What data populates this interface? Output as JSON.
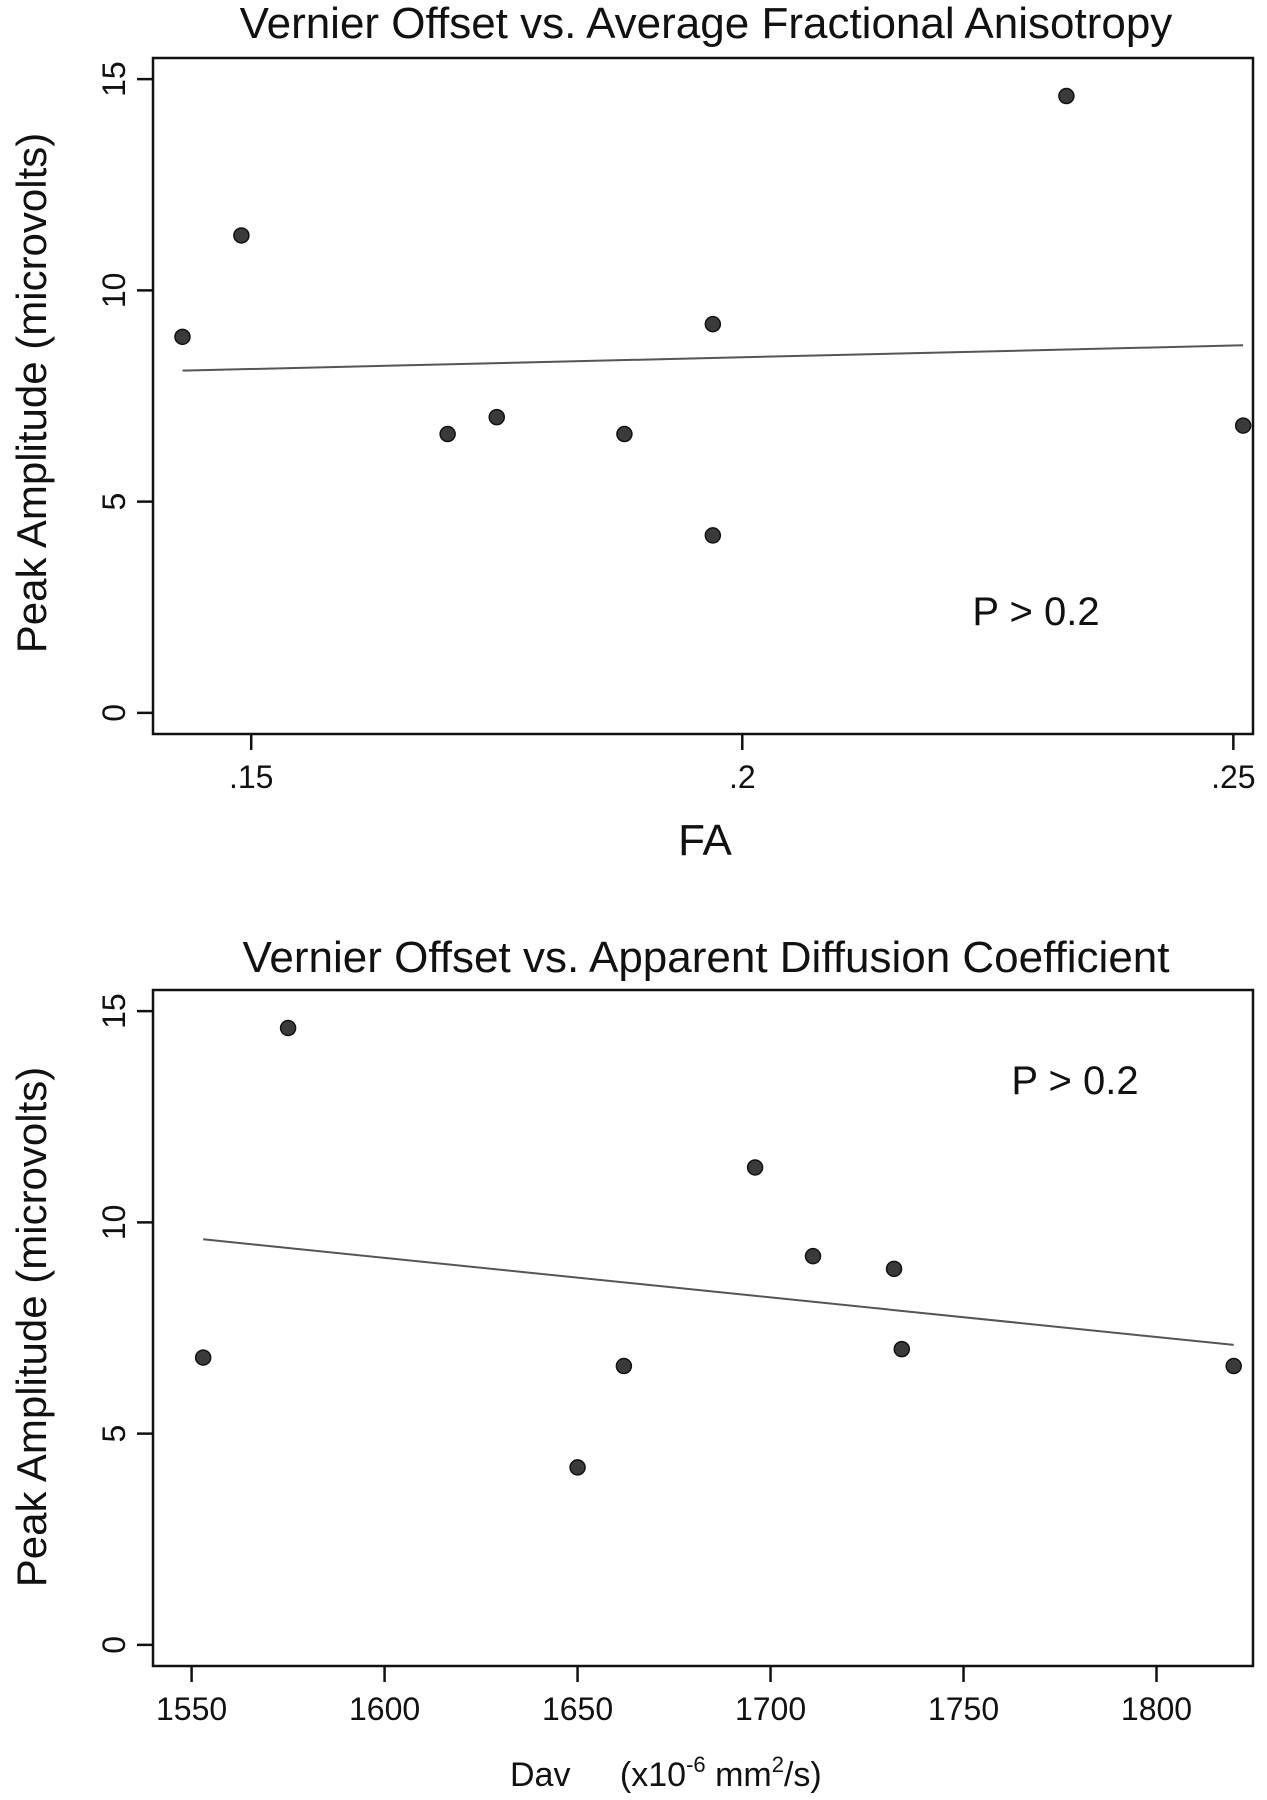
{
  "chart_data": [
    {
      "type": "scatter",
      "title": "Vernier Offset vs. Average Fractional Anisotropy",
      "xlabel": "FA",
      "ylabel": "Peak Amplitude (microvolts)",
      "xlim": [
        0.14,
        0.252
      ],
      "ylim": [
        -0.5,
        15.5
      ],
      "xticks": [
        0.15,
        0.2,
        0.25
      ],
      "xtick_labels": [
        ".15",
        ".2",
        ".25"
      ],
      "yticks": [
        0,
        5,
        10,
        15
      ],
      "ytick_labels": [
        "0",
        "5",
        "10",
        "15"
      ],
      "points": [
        {
          "x": 0.143,
          "y": 8.9
        },
        {
          "x": 0.149,
          "y": 11.3
        },
        {
          "x": 0.17,
          "y": 6.6
        },
        {
          "x": 0.175,
          "y": 7.0
        },
        {
          "x": 0.188,
          "y": 6.6
        },
        {
          "x": 0.197,
          "y": 9.2
        },
        {
          "x": 0.197,
          "y": 4.2
        },
        {
          "x": 0.233,
          "y": 14.6
        },
        {
          "x": 0.251,
          "y": 6.8
        }
      ],
      "fit_line": [
        {
          "x": 0.143,
          "y": 8.1
        },
        {
          "x": 0.251,
          "y": 8.7
        }
      ],
      "annotation": "P > 0.2",
      "grid": false
    },
    {
      "type": "scatter",
      "title": "Vernier Offset vs. Apparent Diffusion Coefficient",
      "xlabel": "Dav",
      "xlabel_unit": {
        "prefix": "(x10",
        "exp": "-6",
        "mid": " mm",
        "exp2": "2",
        "suffix": "/s)"
      },
      "ylabel": "Peak Amplitude (microvolts)",
      "xlim": [
        1540,
        1825
      ],
      "ylim": [
        -0.5,
        15.5
      ],
      "xticks": [
        1550,
        1600,
        1650,
        1700,
        1750,
        1800
      ],
      "xtick_labels": [
        "1550",
        "1600",
        "1650",
        "1700",
        "1750",
        "1800"
      ],
      "yticks": [
        0,
        5,
        10,
        15
      ],
      "ytick_labels": [
        "0",
        "5",
        "10",
        "15"
      ],
      "points": [
        {
          "x": 1553,
          "y": 6.8
        },
        {
          "x": 1575,
          "y": 14.6
        },
        {
          "x": 1650,
          "y": 4.2
        },
        {
          "x": 1662,
          "y": 6.6
        },
        {
          "x": 1696,
          "y": 11.3
        },
        {
          "x": 1711,
          "y": 9.2
        },
        {
          "x": 1732,
          "y": 8.9
        },
        {
          "x": 1734,
          "y": 7.0
        },
        {
          "x": 1820,
          "y": 6.6
        }
      ],
      "fit_line": [
        {
          "x": 1553,
          "y": 9.6
        },
        {
          "x": 1820,
          "y": 7.1
        }
      ],
      "annotation": "P > 0.2",
      "grid": false
    }
  ]
}
